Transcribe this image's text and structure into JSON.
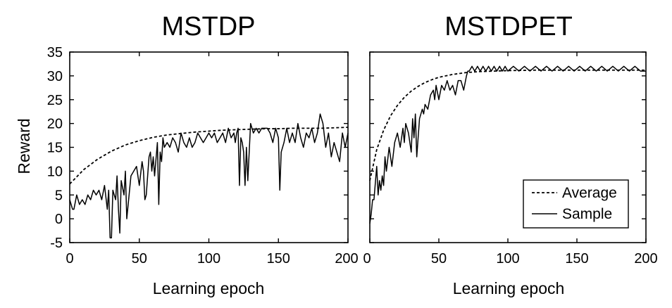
{
  "chart_data": [
    {
      "type": "line",
      "title": "MSTDP",
      "xlabel": "Learning epoch",
      "ylabel": "Reward",
      "xlim": [
        0,
        200
      ],
      "ylim": [
        -5,
        35
      ],
      "xticks": [
        "0",
        "50",
        "100",
        "150",
        "200"
      ],
      "yticks": [
        "-5",
        "0",
        "5",
        "10",
        "15",
        "20",
        "25",
        "30",
        "35"
      ],
      "grid": false,
      "legend": null,
      "series": [
        {
          "name": "Average",
          "style": "dashed",
          "x": [
            0,
            10,
            20,
            30,
            40,
            50,
            60,
            70,
            80,
            90,
            100,
            110,
            120,
            130,
            140,
            150,
            160,
            170,
            180,
            190,
            200
          ],
          "y": [
            7.3,
            10.3,
            12.5,
            14.2,
            15.5,
            16.4,
            17.1,
            17.6,
            17.9,
            18.2,
            18.4,
            18.6,
            18.7,
            18.8,
            18.9,
            18.9,
            19.0,
            19.0,
            19.0,
            19.1,
            19.2
          ]
        },
        {
          "name": "Sample",
          "style": "solid",
          "x": [
            0,
            2,
            3,
            5,
            7,
            9,
            11,
            13,
            15,
            17,
            19,
            21,
            23,
            25,
            27,
            28,
            29,
            30,
            31,
            33,
            34,
            35,
            36,
            37,
            39,
            40,
            41,
            43,
            44,
            46,
            48,
            50,
            52,
            53,
            54,
            55,
            57,
            58,
            59,
            60,
            61,
            63,
            64,
            65,
            66,
            67,
            68,
            70,
            72,
            74,
            76,
            78,
            80,
            82,
            84,
            86,
            88,
            90,
            92,
            94,
            96,
            98,
            100,
            102,
            104,
            106,
            108,
            110,
            112,
            114,
            116,
            118,
            119,
            120,
            121,
            122,
            123,
            124,
            125,
            126,
            127,
            128,
            130,
            132,
            134,
            136,
            138,
            140,
            142,
            144,
            146,
            148,
            150,
            151,
            152,
            154,
            156,
            158,
            160,
            162,
            164,
            166,
            168,
            170,
            172,
            174,
            176,
            178,
            180,
            182,
            184,
            186,
            188,
            190,
            192,
            194,
            196,
            198,
            200
          ],
          "y": [
            4,
            2,
            2,
            5,
            3,
            4,
            3,
            5,
            4,
            6,
            5,
            6,
            4,
            7,
            2,
            6,
            -4,
            -4,
            6,
            4,
            9,
            2,
            -3,
            8,
            5,
            10,
            0,
            6,
            9,
            10,
            11,
            7,
            12,
            10,
            4,
            5,
            13,
            14,
            10,
            13,
            9,
            16,
            3,
            14,
            12,
            17,
            15,
            16,
            15,
            17,
            16,
            14,
            18,
            16,
            15,
            17,
            15,
            16,
            18,
            17,
            16,
            17,
            18,
            17,
            18,
            16,
            17,
            18,
            16,
            19,
            17,
            18,
            16,
            18,
            19,
            7,
            17,
            16,
            14,
            7,
            15,
            8,
            20,
            18,
            19,
            18,
            19,
            19,
            19,
            18,
            16,
            19,
            17,
            6,
            14,
            16,
            19,
            16,
            18,
            16,
            20,
            17,
            15,
            18,
            17,
            19,
            16,
            18,
            22,
            20,
            15,
            18,
            13,
            16,
            14,
            12,
            18,
            15,
            18
          ]
        }
      ]
    },
    {
      "type": "line",
      "title": "MSTDPET",
      "xlabel": "Learning epoch",
      "ylabel": "",
      "xlim": [
        0,
        200
      ],
      "ylim": [
        -5,
        35
      ],
      "xticks": [
        "0",
        "50",
        "100",
        "150",
        "200"
      ],
      "yticks": [],
      "grid": false,
      "legend": "bottom-right",
      "series": [
        {
          "name": "Average",
          "style": "dashed",
          "x": [
            0,
            5,
            10,
            15,
            20,
            25,
            30,
            35,
            40,
            45,
            50,
            55,
            60,
            65,
            70,
            80,
            90,
            100,
            120,
            140,
            160,
            180,
            200
          ],
          "y": [
            8.0,
            14.5,
            18.6,
            21.6,
            23.8,
            25.5,
            26.8,
            27.8,
            28.6,
            29.2,
            29.7,
            30.0,
            30.3,
            30.5,
            30.7,
            30.9,
            31.0,
            31.1,
            31.2,
            31.2,
            31.2,
            31.2,
            31.2
          ]
        },
        {
          "name": "Sample",
          "style": "solid",
          "x": [
            0,
            1,
            2,
            3,
            5,
            6,
            7,
            8,
            9,
            10,
            11,
            12,
            14,
            16,
            18,
            20,
            22,
            24,
            25,
            26,
            28,
            30,
            31,
            32,
            33,
            34,
            36,
            38,
            39,
            40,
            42,
            44,
            46,
            47,
            48,
            50,
            52,
            54,
            56,
            58,
            60,
            62,
            64,
            66,
            68,
            70,
            71,
            72,
            74,
            76,
            78,
            80,
            82,
            84,
            86,
            88,
            90,
            92,
            94,
            96,
            98,
            100,
            104,
            108,
            112,
            116,
            120,
            124,
            128,
            132,
            136,
            140,
            144,
            148,
            152,
            156,
            160,
            164,
            168,
            172,
            176,
            180,
            184,
            188,
            192,
            196,
            200
          ],
          "y": [
            -1,
            1,
            4,
            4,
            11,
            5,
            8,
            6,
            9,
            7,
            13,
            10,
            15,
            11,
            16,
            18,
            15,
            19,
            16,
            20,
            18,
            14,
            21,
            17,
            22,
            13,
            21,
            23,
            22,
            24,
            23,
            26,
            27,
            25,
            28,
            25,
            28,
            27,
            29,
            27,
            28,
            26,
            29,
            29,
            27,
            30,
            31,
            31,
            32,
            31,
            32,
            31,
            32,
            31,
            32,
            31,
            32,
            31,
            32,
            31,
            32,
            31,
            32,
            31,
            32,
            31,
            32,
            31,
            32,
            31,
            32,
            31,
            32,
            31,
            32,
            31,
            32,
            31,
            32,
            31,
            32,
            31,
            32,
            31,
            32,
            31,
            31
          ]
        }
      ]
    }
  ]
}
